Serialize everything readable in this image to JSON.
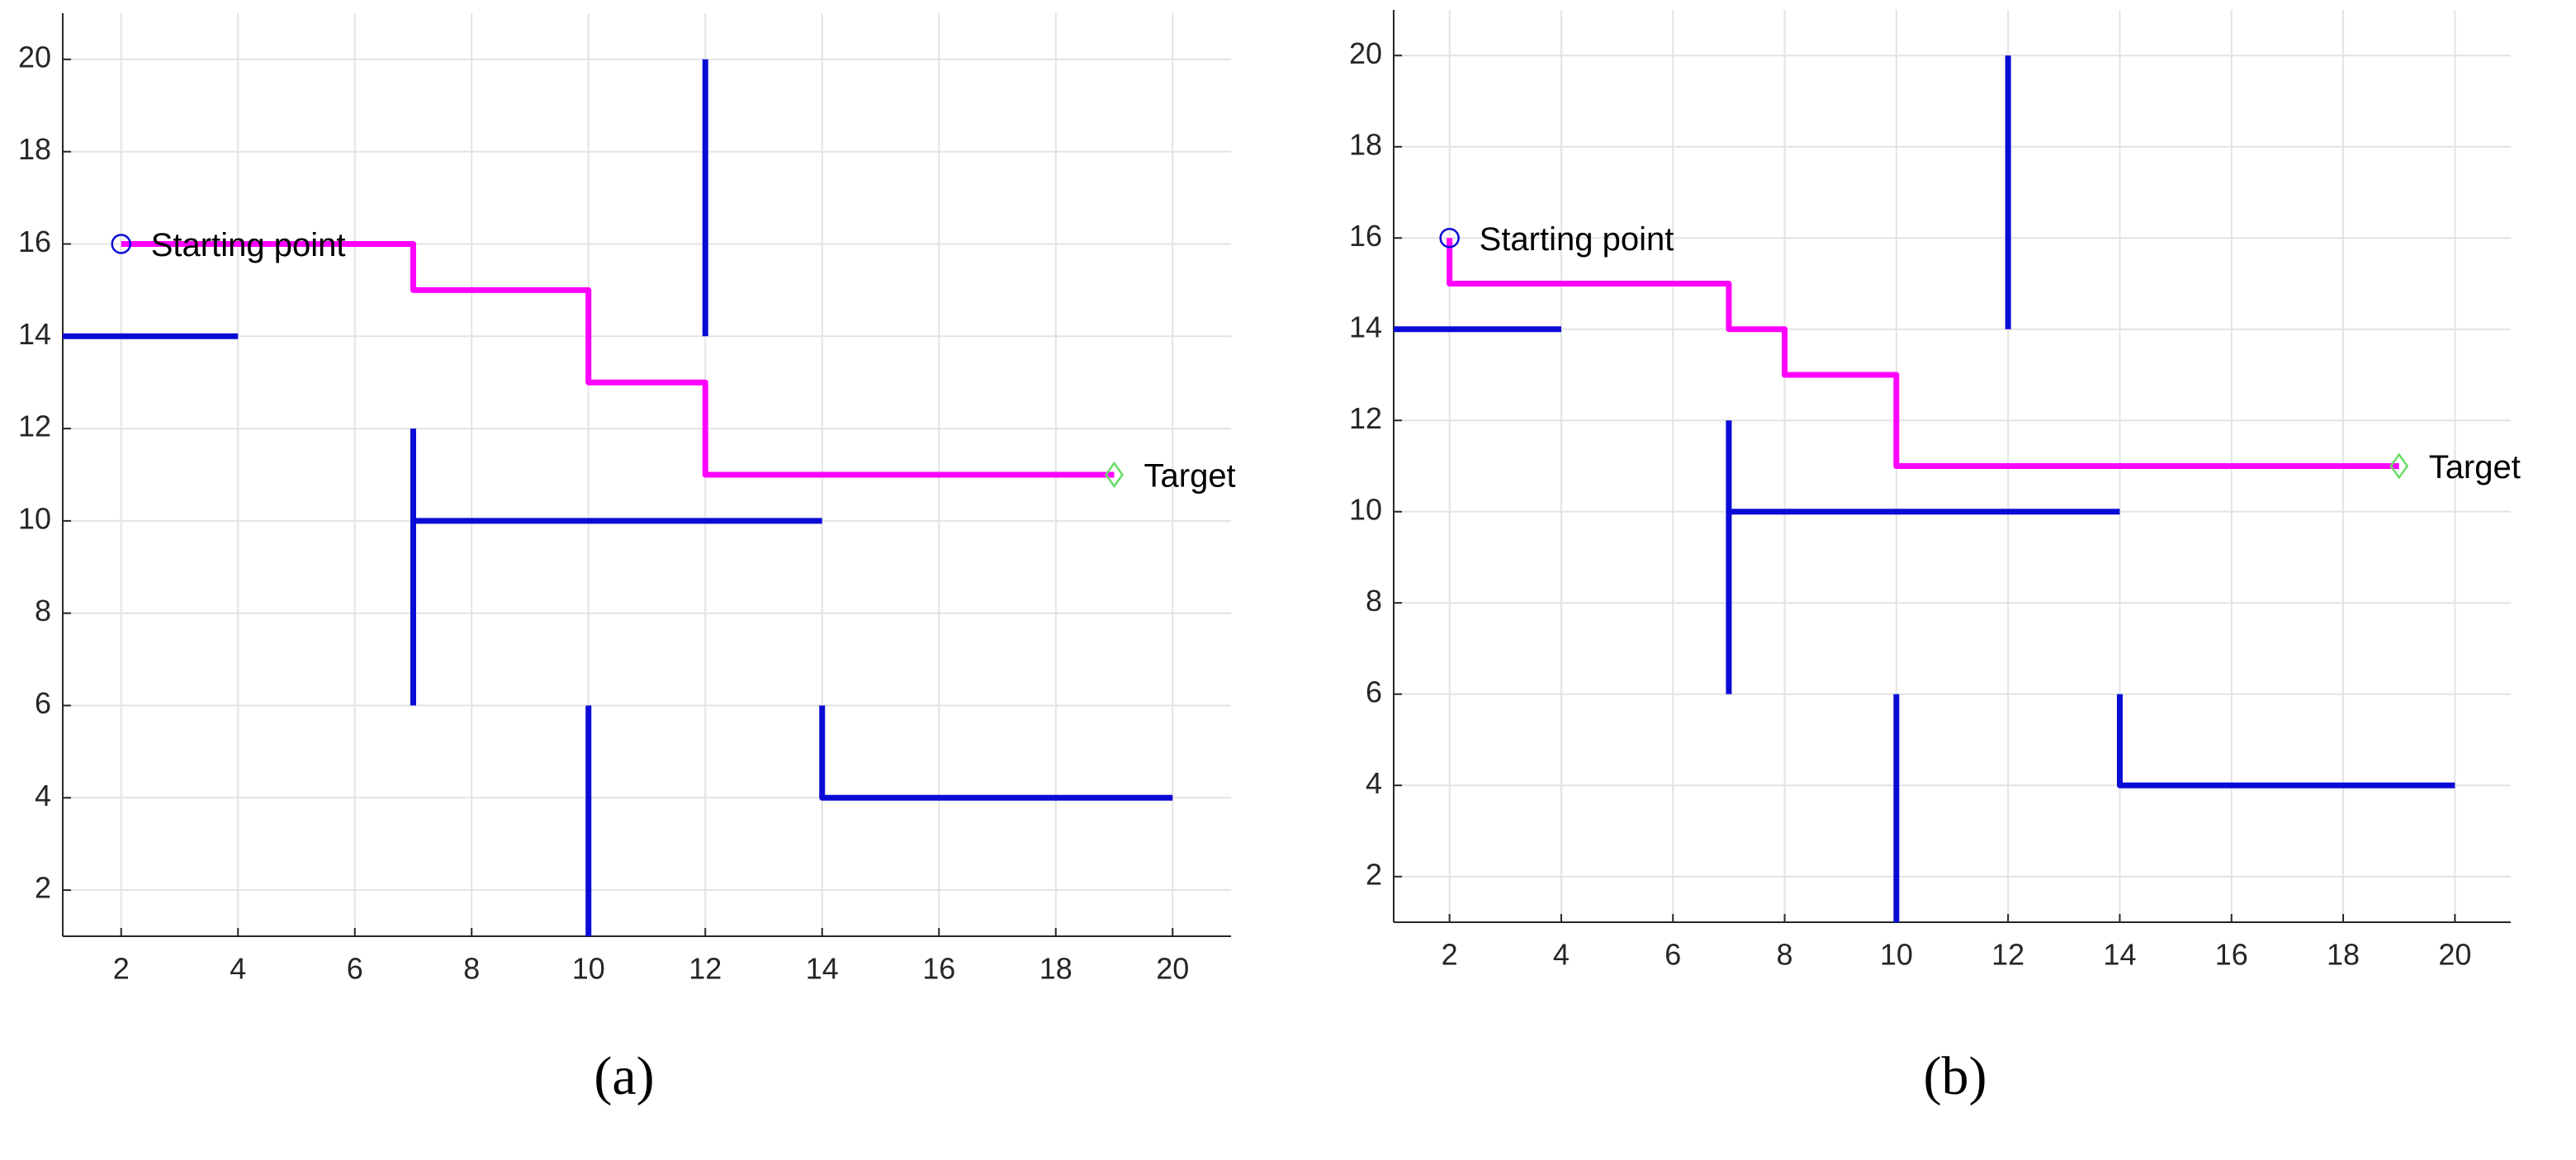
{
  "chart_data": [
    {
      "type": "line",
      "caption": "(a)",
      "xlim": [
        1,
        21
      ],
      "ylim": [
        1,
        21
      ],
      "xticks": [
        2,
        4,
        6,
        8,
        10,
        12,
        14,
        16,
        18,
        20
      ],
      "yticks": [
        2,
        4,
        6,
        8,
        10,
        12,
        14,
        16,
        18,
        20
      ],
      "grid": true,
      "series": [
        {
          "color": "#0b0bd6",
          "x": [
            1,
            4,
            null,
            12,
            12,
            null,
            7,
            7,
            null,
            7,
            14,
            null,
            10,
            10,
            null,
            14,
            14,
            20
          ],
          "values": [
            14,
            14,
            null,
            14,
            20,
            null,
            6,
            12,
            null,
            10,
            10,
            null,
            1,
            6,
            null,
            6,
            4,
            4
          ]
        },
        {
          "color": "#ff00ff",
          "x": [
            2,
            7,
            7,
            10,
            10,
            12,
            12,
            19
          ],
          "values": [
            16,
            16,
            15,
            15,
            13,
            13,
            11,
            11
          ]
        }
      ],
      "start": {
        "x": 2,
        "y": 16,
        "label": "Starting point",
        "color": "#0b0bd6"
      },
      "target": {
        "x": 19,
        "y": 11,
        "label": "Target",
        "color": "#66dd66"
      }
    },
    {
      "type": "line",
      "caption": "(b)",
      "xlim": [
        1,
        21
      ],
      "ylim": [
        1,
        21
      ],
      "xticks": [
        2,
        4,
        6,
        8,
        10,
        12,
        14,
        16,
        18,
        20
      ],
      "yticks": [
        2,
        4,
        6,
        8,
        10,
        12,
        14,
        16,
        18,
        20
      ],
      "grid": true,
      "series": [
        {
          "color": "#0b0bd6",
          "x": [
            1,
            4,
            null,
            12,
            12,
            null,
            7,
            7,
            null,
            7,
            14,
            null,
            10,
            10,
            null,
            14,
            14,
            20
          ],
          "values": [
            14,
            14,
            null,
            14,
            20,
            null,
            6,
            12,
            null,
            10,
            10,
            null,
            1,
            6,
            null,
            6,
            4,
            4
          ]
        },
        {
          "color": "#ff00ff",
          "x": [
            2,
            2,
            7,
            7,
            8,
            8,
            10,
            10,
            19
          ],
          "values": [
            16,
            15,
            15,
            14,
            14,
            13,
            13,
            11,
            11
          ]
        }
      ],
      "start": {
        "x": 2,
        "y": 16,
        "label": "Starting point",
        "color": "#0b0bd6"
      },
      "target": {
        "x": 19,
        "y": 11,
        "label": "Target",
        "color": "#66dd66"
      }
    }
  ]
}
